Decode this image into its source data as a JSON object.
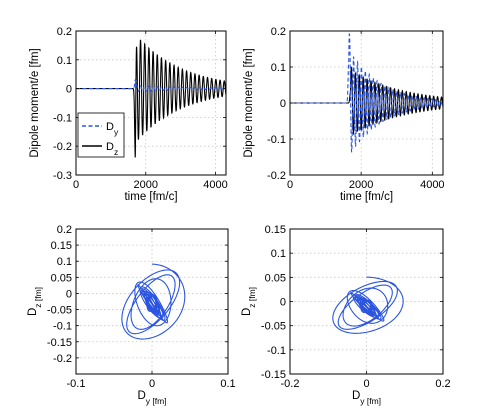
{
  "colors": {
    "blue": "#2b55e0",
    "black": "#000000",
    "grid": "#c8c8c8",
    "axis": "#000000"
  },
  "chart_data": [
    {
      "type": "line",
      "ylabel": "Dipole moment/e [fm]",
      "xlabel": "time [fm/c]",
      "xlim": [
        0,
        4300
      ],
      "ylim": [
        -0.3,
        0.2
      ],
      "xticks": [
        0,
        2000,
        4000
      ],
      "xtick_labels": [
        "0",
        "2000",
        "4000"
      ],
      "yticks": [
        -0.3,
        -0.2,
        -0.1,
        0,
        0.1,
        0.2
      ],
      "ytick_labels": [
        "-0.3",
        "-0.2",
        "-0.1",
        "0",
        "0.1",
        "0.2"
      ],
      "grid": true,
      "legend": {
        "placement": "bottom-left",
        "entries": [
          "D_y",
          "D_z"
        ]
      },
      "series": [
        {
          "name": "D_y",
          "style": "dashed",
          "color": "blue",
          "onset": 1700,
          "pre_peak": 0.03,
          "amp": 0.01,
          "period": 120,
          "decay": 1500
        },
        {
          "name": "D_z",
          "style": "solid",
          "color": "black",
          "onset": 1700,
          "pre_peak": -0.24,
          "amp": 0.19,
          "period": 120,
          "decay": 1300
        }
      ]
    },
    {
      "type": "line",
      "ylabel": "Dipole moment/e [fm]",
      "xlabel": "time [fm/c]",
      "xlim": [
        0,
        4300
      ],
      "ylim": [
        -0.2,
        0.2
      ],
      "xticks": [
        0,
        2000,
        4000
      ],
      "xtick_labels": [
        "0",
        "2000",
        "4000"
      ],
      "yticks": [
        -0.2,
        -0.1,
        0,
        0.1,
        0.2
      ],
      "ytick_labels": [
        "-0.2",
        "-0.1",
        "0",
        "0.1",
        "0.2"
      ],
      "grid": true,
      "series": [
        {
          "name": "D_y",
          "style": "dashed",
          "color": "blue",
          "onset": 1650,
          "pre_peak": 0.11,
          "amp": 0.15,
          "period": 110,
          "decay": 900
        },
        {
          "name": "D_z",
          "style": "solid",
          "color": "black",
          "onset": 1700,
          "pre_peak": 0.03,
          "amp": 0.09,
          "period": 110,
          "decay": 1500
        }
      ]
    },
    {
      "type": "line",
      "ylabel": "D_z [fm]",
      "xlabel": "D_y [fm]",
      "xlim": [
        -0.1,
        0.1
      ],
      "ylim": [
        -0.25,
        0.2
      ],
      "xticks": [
        -0.1,
        0,
        0.1
      ],
      "xtick_labels": [
        "-0.1",
        "0",
        "0.1"
      ],
      "yticks": [
        -0.2,
        -0.15,
        -0.1,
        -0.05,
        0,
        0.05,
        0.1,
        0.15,
        0.2
      ],
      "ytick_labels": [
        "-0.2",
        "-0.15",
        "-0.1",
        "-0.05",
        "0",
        "0.05",
        "0.1",
        "0.15",
        "0.2"
      ],
      "grid": true,
      "trajectory": {
        "color": "blue",
        "x_amp": 0.045,
        "y_amp": 0.22,
        "x_center": 0.0,
        "y_center": -0.03
      }
    },
    {
      "type": "line",
      "ylabel": "D_z [fm]",
      "xlabel": "D_y [fm]",
      "xlim": [
        -0.2,
        0.2
      ],
      "ylim": [
        -0.15,
        0.15
      ],
      "xticks": [
        -0.2,
        0,
        0.2
      ],
      "xtick_labels": [
        "-0.2",
        "0",
        "0.2"
      ],
      "yticks": [
        -0.15,
        -0.1,
        -0.05,
        0,
        0.05,
        0.1,
        0.15
      ],
      "ytick_labels": [
        "-0.15",
        "-0.1",
        "-0.05",
        "0",
        "0.05",
        "0.1",
        "0.15"
      ],
      "grid": true,
      "trajectory": {
        "color": "blue",
        "x_amp": 0.1,
        "y_amp": 0.11,
        "x_center": 0.0,
        "y_center": -0.01
      }
    }
  ]
}
